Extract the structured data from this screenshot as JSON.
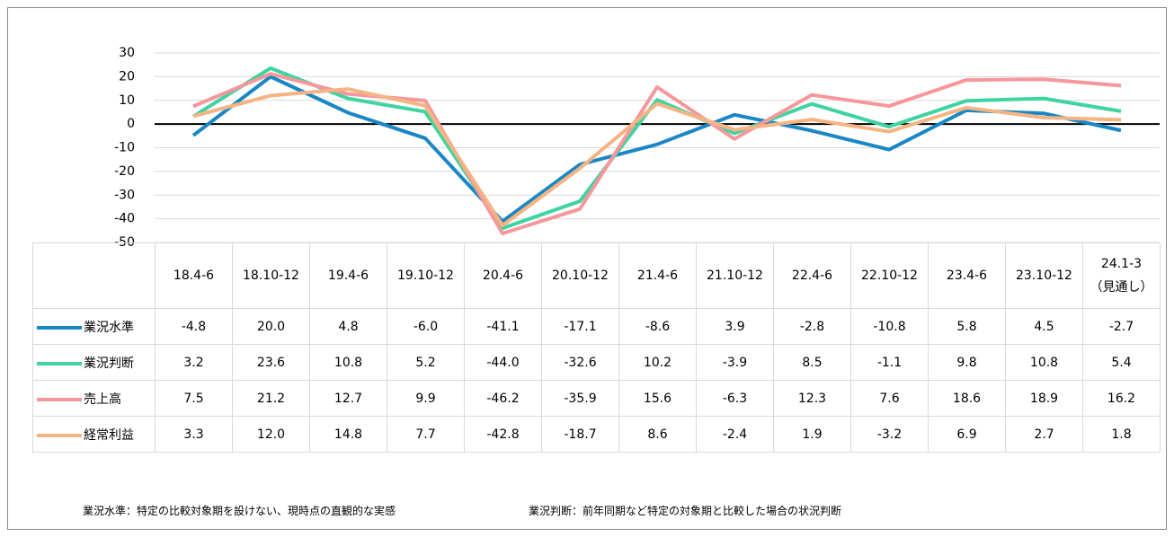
{
  "chart_data": {
    "type": "line",
    "categories": [
      "18.4-6",
      "18.10-12",
      "19.4-6",
      "19.10-12",
      "20.4-6",
      "20.10-12",
      "21.4-6",
      "21.10-12",
      "22.4-6",
      "22.10-12",
      "23.4-6",
      "23.10-12",
      "24.1-3\n（見通し）"
    ],
    "series": [
      {
        "name": "業況水準",
        "color": "#1a87c5",
        "values": [
          -4.8,
          20,
          4.8,
          -6,
          -41.1,
          -17.1,
          -8.6,
          3.9,
          -2.8,
          -10.8,
          5.8,
          4.5,
          -2.7
        ],
        "value_labels": [
          "-4.8",
          "20.0",
          "4.8",
          "-6.0",
          "-41.1",
          "-17.1",
          "-8.6",
          "3.9",
          "-2.8",
          "-10.8",
          "5.8",
          "4.5",
          "-2.7"
        ]
      },
      {
        "name": "業況判断",
        "color": "#3fd3a0",
        "values": [
          3.2,
          23.6,
          10.8,
          5.2,
          -44,
          -32.6,
          10.2,
          -3.9,
          8.5,
          -1.1,
          9.8,
          10.8,
          5.4
        ],
        "value_labels": [
          "3.2",
          "23.6",
          "10.8",
          "5.2",
          "-44.0",
          "-32.6",
          "10.2",
          "-3.9",
          "8.5",
          "-1.1",
          "9.8",
          "10.8",
          "5.4"
        ]
      },
      {
        "name": "売上高",
        "color": "#f5979b",
        "values": [
          7.5,
          21.2,
          12.7,
          9.9,
          -46.2,
          -35.9,
          15.6,
          -6.3,
          12.3,
          7.6,
          18.6,
          18.9,
          16.2
        ],
        "value_labels": [
          "7.5",
          "21.2",
          "12.7",
          "9.9",
          "-46.2",
          "-35.9",
          "15.6",
          "-6.3",
          "12.3",
          "7.6",
          "18.6",
          "18.9",
          "16.2"
        ]
      },
      {
        "name": "経常利益",
        "color": "#f4b484",
        "values": [
          3.3,
          12,
          14.8,
          7.7,
          -42.8,
          -18.7,
          8.6,
          -2.4,
          1.9,
          -3.2,
          6.9,
          2.7,
          1.8
        ],
        "value_labels": [
          "3.3",
          "12.0",
          "14.8",
          "7.7",
          "-42.8",
          "-18.7",
          "8.6",
          "-2.4",
          "1.9",
          "-3.2",
          "6.9",
          "2.7",
          "1.8"
        ]
      }
    ],
    "ylim": [
      -50,
      30
    ],
    "yticks": [
      -50,
      -40,
      -30,
      -20,
      -10,
      0,
      10,
      20,
      30
    ],
    "grid": true,
    "notes": [
      "業況水準：特定の比較対象期を設けない、現時点の直観的な実感",
      "業況判断：前年同期など特定の対象期と比較した場合の状況判断"
    ]
  }
}
